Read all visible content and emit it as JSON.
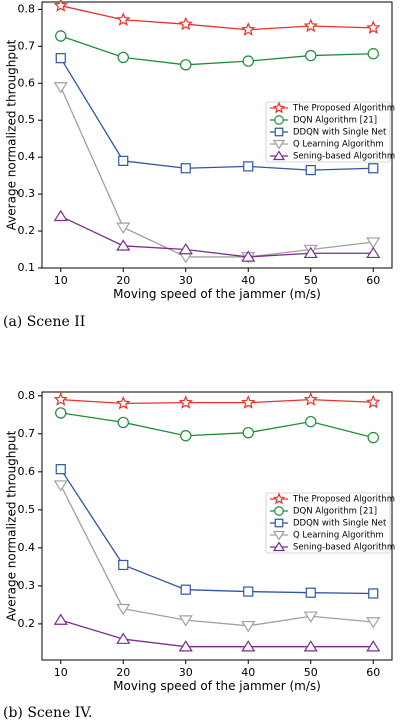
{
  "chart_data": [
    {
      "type": "line",
      "caption": "(a)  Scene II",
      "xlabel": "Moving speed of the jammer (m/s)",
      "ylabel": "Average normalized throughput",
      "x": [
        10,
        20,
        30,
        40,
        50,
        60
      ],
      "xlim": [
        7,
        63
      ],
      "ylim": [
        0.1,
        0.82
      ],
      "yticks": [
        0.1,
        0.2,
        0.3,
        0.4,
        0.5,
        0.6,
        0.7,
        0.8
      ],
      "grid": false,
      "legend_position": "right",
      "series": [
        {
          "name": "The Proposed Algorithm",
          "color": "#e8312a",
          "marker": "star",
          "values": [
            0.81,
            0.772,
            0.76,
            0.745,
            0.755,
            0.75
          ]
        },
        {
          "name": "DQN Algorithm [21]",
          "color": "#1f8c3a",
          "marker": "circle",
          "values": [
            0.728,
            0.67,
            0.65,
            0.66,
            0.675,
            0.68
          ]
        },
        {
          "name": "DDQN with Single Net",
          "color": "#2f55a4",
          "marker": "square",
          "values": [
            0.668,
            0.39,
            0.37,
            0.375,
            0.365,
            0.37
          ]
        },
        {
          "name": "Q Learning Algorithm",
          "color": "#a0a0a0",
          "marker": "triangle-down",
          "values": [
            0.59,
            0.21,
            0.13,
            0.13,
            0.15,
            0.17
          ]
        },
        {
          "name": "Sening-based Algorithm",
          "color": "#7b2d8e",
          "marker": "triangle-up",
          "values": [
            0.24,
            0.16,
            0.15,
            0.13,
            0.14,
            0.14
          ]
        }
      ]
    },
    {
      "type": "line",
      "caption": "(b)  Scene IV.",
      "xlabel": "Moving speed of the jammer (m/s)",
      "ylabel": "Average normalized throughput",
      "x": [
        10,
        20,
        30,
        40,
        50,
        60
      ],
      "xlim": [
        7,
        63
      ],
      "ylim": [
        0.105,
        0.81
      ],
      "yticks": [
        0.2,
        0.3,
        0.4,
        0.5,
        0.6,
        0.7,
        0.8
      ],
      "grid": false,
      "legend_position": "right",
      "series": [
        {
          "name": "The Proposed Algorithm",
          "color": "#e8312a",
          "marker": "star",
          "values": [
            0.79,
            0.78,
            0.782,
            0.782,
            0.79,
            0.783
          ]
        },
        {
          "name": "DQN Algorithm [21]",
          "color": "#1f8c3a",
          "marker": "circle",
          "values": [
            0.755,
            0.73,
            0.695,
            0.703,
            0.732,
            0.69
          ]
        },
        {
          "name": "DDQN with Single Net",
          "color": "#2f55a4",
          "marker": "square",
          "values": [
            0.607,
            0.355,
            0.29,
            0.285,
            0.282,
            0.28
          ]
        },
        {
          "name": "Q Learning Algorithm",
          "color": "#a0a0a0",
          "marker": "triangle-down",
          "values": [
            0.565,
            0.24,
            0.21,
            0.195,
            0.22,
            0.205
          ]
        },
        {
          "name": "Sening-based Algorithm",
          "color": "#7b2d8e",
          "marker": "triangle-up",
          "values": [
            0.21,
            0.16,
            0.14,
            0.14,
            0.14,
            0.14
          ]
        }
      ]
    }
  ]
}
